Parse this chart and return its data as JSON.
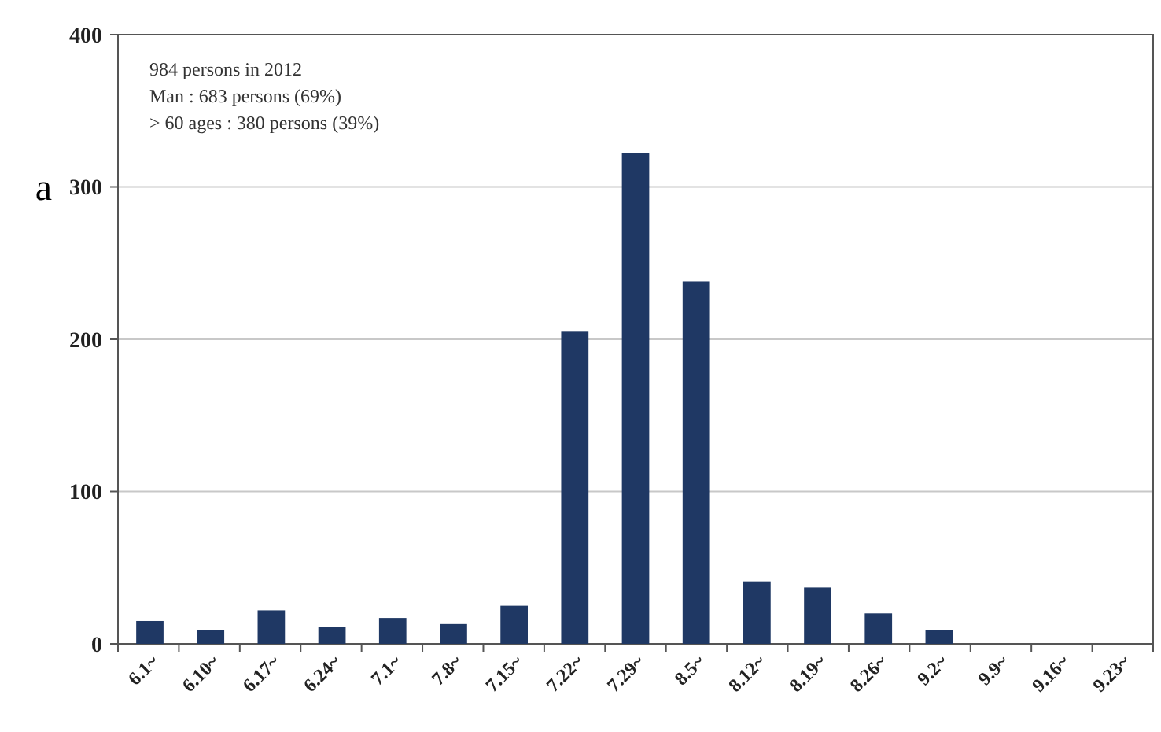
{
  "chart_data": {
    "type": "bar",
    "categories": [
      "6.1~",
      "6.10~",
      "6.17~",
      "6.24~",
      "7.1~",
      "7.8~",
      "7.15~",
      "7.22~",
      "7.29~",
      "8.5~",
      "8.12~",
      "8.19~",
      "8.26~",
      "9.2~",
      "9.9~",
      "9.16~",
      "9.23~"
    ],
    "values": [
      15,
      9,
      22,
      11,
      17,
      13,
      25,
      205,
      322,
      238,
      41,
      37,
      20,
      9,
      0,
      0,
      0
    ],
    "color": "#1f3864",
    "ylim": [
      0,
      400
    ],
    "yticks": [
      0,
      100,
      200,
      300,
      400
    ],
    "grid": "y",
    "annotations": [
      "984 persons in 2012",
      "Man : 683 persons (69%)",
      "> 60 ages : 380 persons (39%)",
      "a"
    ]
  }
}
